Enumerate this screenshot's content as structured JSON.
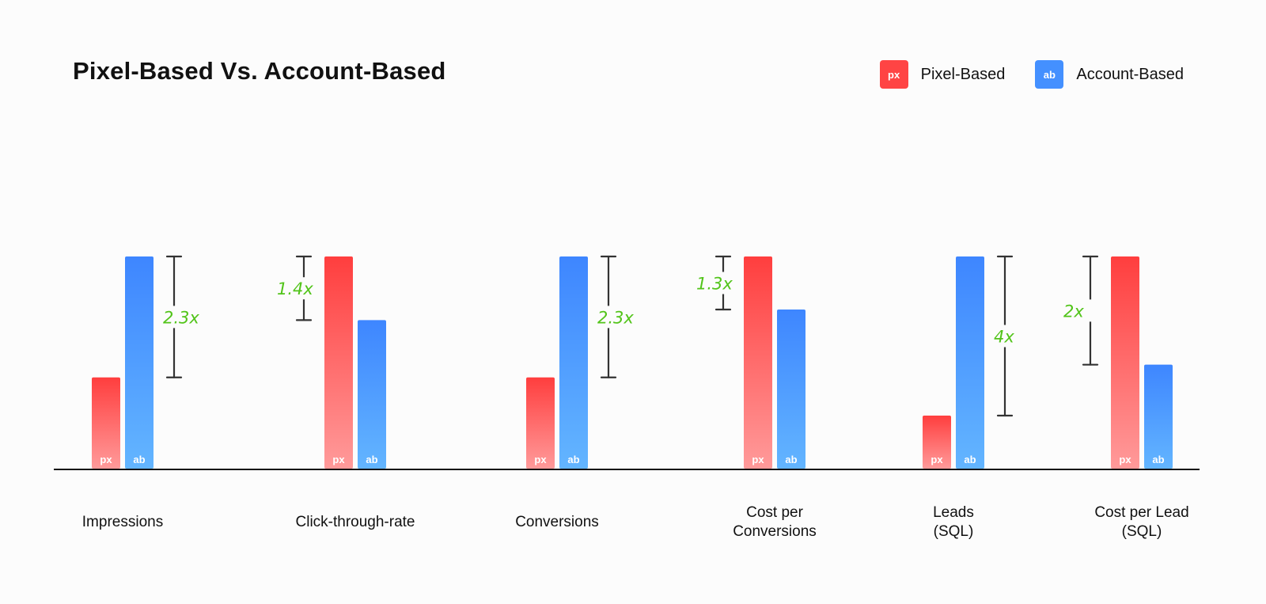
{
  "legend": {
    "items": [
      {
        "badge": "px",
        "label": "Pixel-Based",
        "color": "#ff4444"
      },
      {
        "badge": "ab",
        "label": "Account-Based",
        "color": "#4490ff"
      }
    ]
  },
  "chart_data": {
    "type": "bar",
    "title": "Pixel-Based Vs. Account-Based",
    "categories": [
      [
        "Impressions"
      ],
      [
        "Click-through-rate"
      ],
      [
        "Conversions"
      ],
      [
        "Cost per",
        "Conversions"
      ],
      [
        "Leads",
        "(SQL)"
      ],
      [
        "Cost per Lead",
        "(SQL)"
      ]
    ],
    "series": [
      {
        "name": "Pixel-Based",
        "badge": "px",
        "values": [
          43,
          100,
          43,
          100,
          25,
          100
        ]
      },
      {
        "name": "Account-Based",
        "badge": "ab",
        "values": [
          100,
          70,
          100,
          75,
          100,
          49
        ]
      }
    ],
    "annotations": [
      "2.3x",
      "1.4x",
      "2.3x",
      "1.3x",
      "4x",
      "2x"
    ],
    "ylim": [
      0,
      100
    ],
    "xlabel": "",
    "ylabel": "",
    "grid": false
  }
}
